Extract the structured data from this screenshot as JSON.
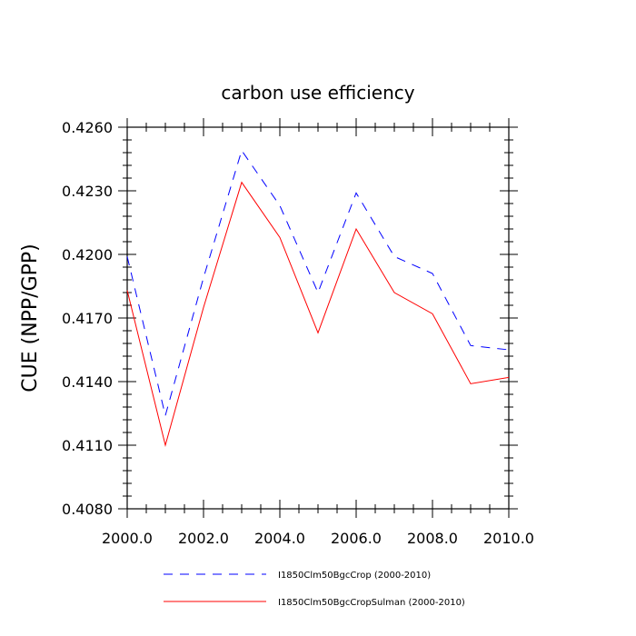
{
  "chart_data": {
    "type": "line",
    "title": "carbon use efficiency",
    "xlabel": "",
    "ylabel": "CUE  (NPP/GPP)",
    "xlim": [
      2000,
      2010
    ],
    "ylim": [
      0.408,
      0.426
    ],
    "x_ticks": [
      2000,
      2002,
      2004,
      2006,
      2008,
      2010
    ],
    "x_tick_labels": [
      "2000.0",
      "2002.0",
      "2004.0",
      "2006.0",
      "2008.0",
      "2010.0"
    ],
    "y_ticks": [
      0.408,
      0.411,
      0.414,
      0.417,
      0.42,
      0.423,
      0.426
    ],
    "y_tick_labels": [
      "0.4080",
      "0.4110",
      "0.4140",
      "0.4170",
      "0.4200",
      "0.4230",
      "0.4260"
    ],
    "x": [
      2000,
      2001,
      2002,
      2003,
      2004,
      2005,
      2006,
      2007,
      2008,
      2009,
      2010
    ],
    "series": [
      {
        "name": "I1850Clm50BgcCrop (2000-2010)",
        "color": "#0000ff",
        "style": "dashed",
        "values": [
          0.4199,
          0.4124,
          0.4189,
          0.4249,
          0.4223,
          0.4182,
          0.4229,
          0.4199,
          0.4191,
          0.4157,
          0.4155
        ]
      },
      {
        "name": "I1850Clm50BgcCropSulman (2000-2010)",
        "color": "#ff0000",
        "style": "solid",
        "values": [
          0.4183,
          0.411,
          0.4175,
          0.4234,
          0.4208,
          0.4163,
          0.4212,
          0.4182,
          0.4172,
          0.4139,
          0.4142
        ]
      }
    ],
    "legend_position": "bottom",
    "grid": false
  }
}
